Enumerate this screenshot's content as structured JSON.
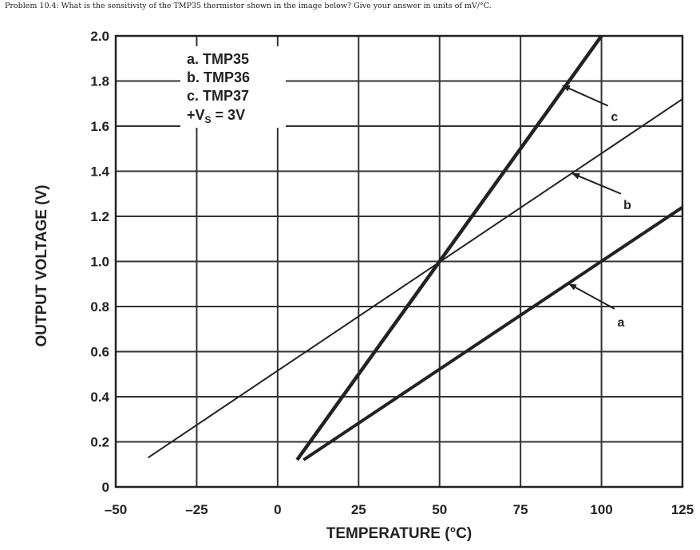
{
  "problem_text": "Problem 10.4: What is the sensitivity of the TMP35 thermistor shown in the image below?  Give your answer in units of mV/°C.",
  "chart_data": {
    "type": "line",
    "xlabel": "TEMPERATURE (°C)",
    "ylabel": "OUTPUT VOLTAGE (V)",
    "xlim": [
      -50,
      125
    ],
    "ylim": [
      0,
      2.0
    ],
    "x_ticks": [
      "–50",
      "–25",
      "0",
      "25",
      "50",
      "75",
      "100",
      "125"
    ],
    "y_ticks": [
      "0",
      "0.2",
      "0.4",
      "0.6",
      "0.8",
      "1.0",
      "1.2",
      "1.4",
      "1.6",
      "1.8",
      "2.0"
    ],
    "grid": true,
    "legend_lines": [
      "a.  TMP35",
      "b.  TMP36",
      "c.  TMP37",
      "+V",
      "S",
      " = 3V"
    ],
    "series": [
      {
        "name": "a",
        "x": [
          8,
          125
        ],
        "y": [
          0.12,
          1.24
        ],
        "stroke_width": 4
      },
      {
        "name": "b",
        "x": [
          -40,
          125
        ],
        "y": [
          0.13,
          1.72
        ],
        "stroke_width": 2
      },
      {
        "name": "c",
        "x": [
          6,
          100
        ],
        "y": [
          0.12,
          2.0
        ],
        "stroke_width": 4.5
      }
    ],
    "callouts": [
      {
        "label": "a",
        "arrow_to": [
          90,
          0.9
        ],
        "from": [
          104,
          0.79
        ],
        "text_at": [
          106,
          0.73
        ]
      },
      {
        "label": "b",
        "arrow_to": [
          91,
          1.39
        ],
        "from": [
          106,
          1.3
        ],
        "text_at": [
          108,
          1.25
        ]
      },
      {
        "label": "c",
        "arrow_to": [
          88,
          1.78
        ],
        "from": [
          102,
          1.69
        ],
        "text_at": [
          104,
          1.64
        ]
      }
    ]
  }
}
